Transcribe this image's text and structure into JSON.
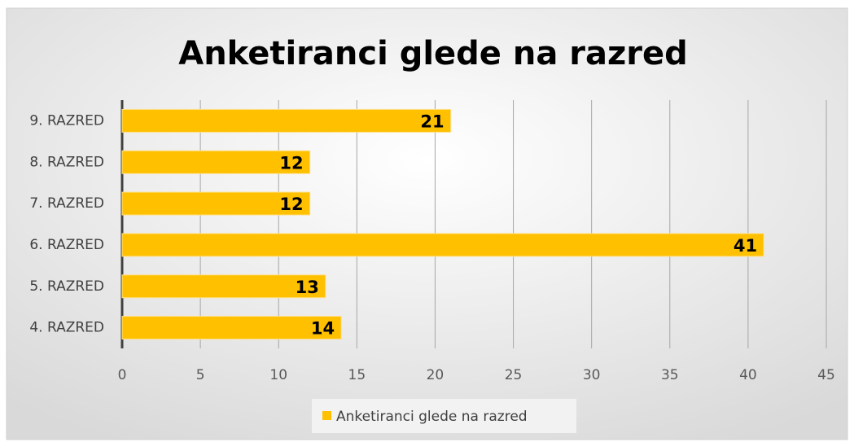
{
  "chart_data": {
    "type": "bar",
    "orientation": "horizontal",
    "title": "Anketiranci glede na razred",
    "categories": [
      "9. RAZRED",
      "8. RAZRED",
      "7. RAZRED",
      "6. RAZRED",
      "5. RAZRED",
      "4. RAZRED"
    ],
    "series": [
      {
        "name": "Anketiranci glede na razred",
        "color": "#ffc000",
        "values": [
          21,
          12,
          12,
          41,
          13,
          14
        ]
      }
    ],
    "xlim": [
      0,
      45
    ],
    "xticks": [
      0,
      5,
      10,
      15,
      20,
      25,
      30,
      35,
      40,
      45
    ],
    "grid": true,
    "legend": "bottom"
  }
}
